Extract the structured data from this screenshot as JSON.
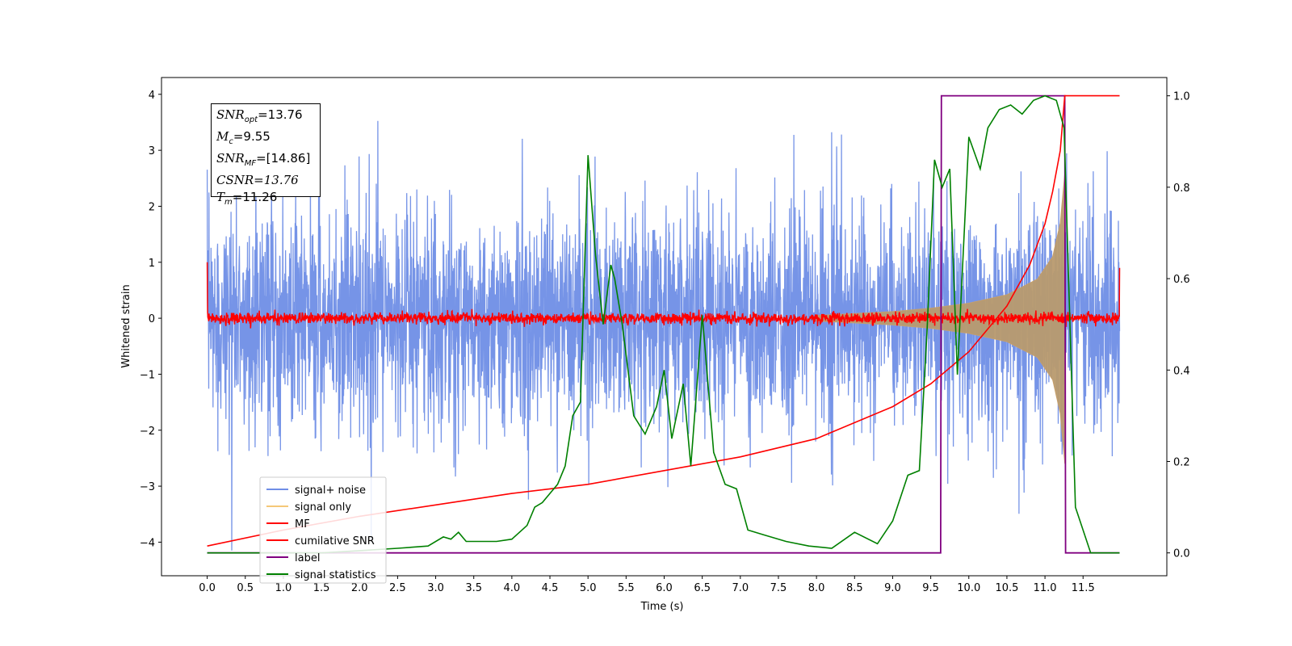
{
  "chart_data": {
    "type": "line",
    "xlabel": "Time (s)",
    "ylabel": "Whitened strain",
    "xlim": [
      -0.6,
      12.6
    ],
    "ylim": [
      -4.6,
      4.3
    ],
    "y2lim": [
      -0.05,
      1.04
    ],
    "x_ticks": [
      0.0,
      0.5,
      1.0,
      1.5,
      2.0,
      2.5,
      3.0,
      3.5,
      4.0,
      4.5,
      5.0,
      5.5,
      6.0,
      6.5,
      7.0,
      7.5,
      8.0,
      8.5,
      9.0,
      9.5,
      10.0,
      10.5,
      11.0,
      11.5
    ],
    "x_tick_labels": [
      "0.0",
      "0.5",
      "1.0",
      "1.5",
      "2.0",
      "2.5",
      "3.0",
      "3.5",
      "4.0",
      "4.5",
      "5.0",
      "5.5",
      "6.0",
      "6.5",
      "7.0",
      "7.5",
      "8.0",
      "8.5",
      "9.0",
      "9.5",
      "10.0",
      "10.5",
      "11.0",
      "11.5"
    ],
    "y_ticks": [
      4,
      3,
      2,
      1,
      0,
      -1,
      -2,
      -3,
      -4
    ],
    "y_tick_labels": [
      "4",
      "3",
      "2",
      "1",
      "0",
      "−1",
      "−2",
      "−3",
      "−4"
    ],
    "y2_ticks": [
      1.0,
      0.8,
      0.6,
      0.4,
      0.2,
      0.0
    ],
    "y2_tick_labels": [
      "1.0",
      "0.8",
      "0.6",
      "0.4",
      "0.2",
      "0.0"
    ],
    "legend_placement": "lower-left",
    "series": [
      {
        "name": "signal+ noise",
        "color": "#6f8ee6",
        "description_values": {
          "x_range": [
            0.0,
            11.98
          ],
          "amplitude_typical": 2.0,
          "peak_max": 3.86,
          "peak_min": -4.15
        }
      },
      {
        "name": "signal only",
        "color": "#f5c878",
        "envelope": {
          "x": [
            8.0,
            9.0,
            9.5,
            10.0,
            10.5,
            10.9,
            11.1,
            11.2,
            11.26
          ],
          "amp": [
            0.05,
            0.12,
            0.18,
            0.27,
            0.42,
            0.7,
            1.1,
            1.7,
            2.6
          ]
        }
      },
      {
        "name": "MF",
        "color": "#ff0000",
        "noise_amplitude": 0.1
      },
      {
        "name": "cumilative SNR",
        "color": "#ff0000",
        "axis": "right",
        "x": [
          0.0,
          1.0,
          2.0,
          3.0,
          4.0,
          5.0,
          6.0,
          7.0,
          8.0,
          9.0,
          9.5,
          10.0,
          10.5,
          10.8,
          11.0,
          11.1,
          11.2,
          11.26,
          11.98
        ],
        "y": [
          0.015,
          0.05,
          0.08,
          0.105,
          0.13,
          0.15,
          0.18,
          0.21,
          0.25,
          0.32,
          0.37,
          0.44,
          0.54,
          0.63,
          0.72,
          0.79,
          0.88,
          1.0,
          1.0
        ]
      },
      {
        "name": "label",
        "color": "#800080",
        "axis": "right",
        "x": [
          0.0,
          9.63,
          9.64,
          11.26,
          11.27,
          11.98
        ],
        "y": [
          0.0,
          0.0,
          1.0,
          1.0,
          0.0,
          0.0
        ]
      },
      {
        "name": "signal statistics",
        "color": "#008000",
        "axis": "right",
        "x": [
          0.0,
          0.5,
          1.0,
          1.5,
          2.0,
          2.5,
          2.9,
          3.1,
          3.2,
          3.3,
          3.4,
          3.6,
          3.8,
          4.0,
          4.2,
          4.3,
          4.4,
          4.5,
          4.6,
          4.7,
          4.8,
          4.9,
          5.0,
          5.1,
          5.2,
          5.3,
          5.35,
          5.45,
          5.6,
          5.75,
          5.9,
          6.0,
          6.1,
          6.25,
          6.35,
          6.5,
          6.65,
          6.8,
          6.95,
          7.1,
          7.3,
          7.6,
          7.9,
          8.2,
          8.5,
          8.8,
          9.0,
          9.2,
          9.35,
          9.45,
          9.55,
          9.65,
          9.75,
          9.85,
          10.0,
          10.15,
          10.25,
          10.4,
          10.55,
          10.7,
          10.85,
          11.0,
          11.15,
          11.25,
          11.4,
          11.6,
          11.98
        ],
        "y": [
          0.0,
          0.0,
          0.0,
          0.0,
          0.005,
          0.01,
          0.015,
          0.035,
          0.03,
          0.045,
          0.025,
          0.025,
          0.025,
          0.03,
          0.06,
          0.1,
          0.11,
          0.13,
          0.15,
          0.19,
          0.3,
          0.33,
          0.87,
          0.65,
          0.5,
          0.63,
          0.6,
          0.5,
          0.3,
          0.26,
          0.32,
          0.4,
          0.25,
          0.37,
          0.19,
          0.52,
          0.22,
          0.15,
          0.14,
          0.05,
          0.04,
          0.025,
          0.015,
          0.01,
          0.045,
          0.02,
          0.07,
          0.17,
          0.18,
          0.48,
          0.86,
          0.8,
          0.84,
          0.39,
          0.91,
          0.84,
          0.93,
          0.97,
          0.98,
          0.96,
          0.99,
          1.0,
          0.99,
          0.93,
          0.1,
          0.0,
          0.0
        ]
      }
    ],
    "annotation": {
      "snr_opt": "=13.76",
      "mc": "=9.55",
      "snr_mf": "=[14.86]",
      "csnr": "CSNR=13.76",
      "tm": "=11.26"
    }
  }
}
